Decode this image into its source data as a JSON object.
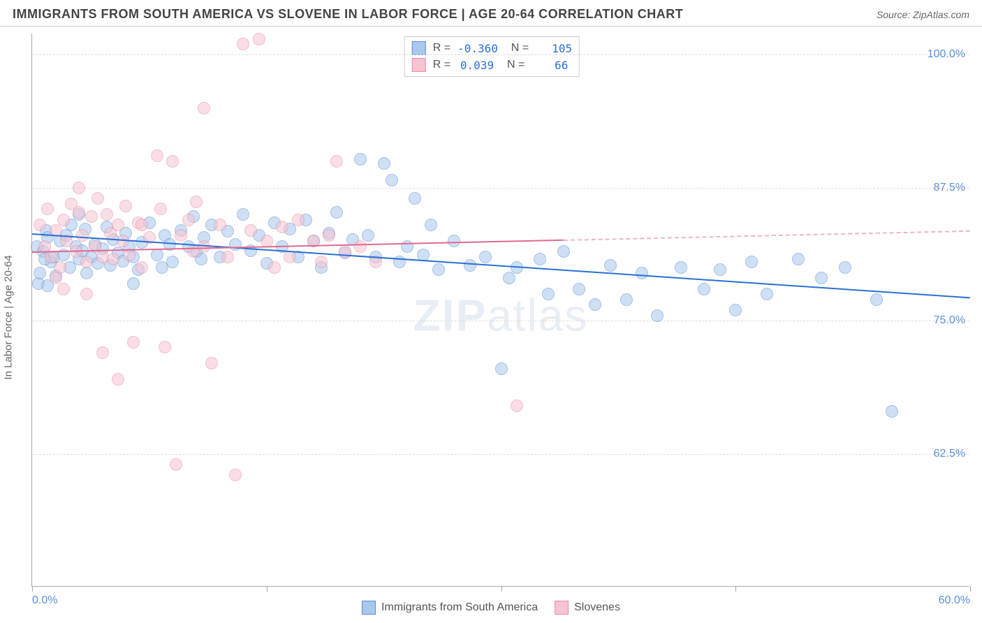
{
  "header": {
    "title": "IMMIGRANTS FROM SOUTH AMERICA VS SLOVENE IN LABOR FORCE | AGE 20-64 CORRELATION CHART",
    "source": "Source: ZipAtlas.com"
  },
  "watermark": {
    "prefix": "ZIP",
    "suffix": "atlas"
  },
  "chart": {
    "type": "scatter",
    "ylabel": "In Labor Force | Age 20-64",
    "background_color": "#ffffff",
    "grid_color": "#dddddd",
    "axis_color": "#aaaaaa",
    "tick_label_color": "#5a8fd6",
    "label_color": "#666666",
    "xlim": [
      0,
      60
    ],
    "ylim": [
      50,
      102
    ],
    "xticks": [
      0,
      15,
      30,
      45,
      60
    ],
    "xtick_labels": [
      "0.0%",
      "",
      "",
      "",
      "60.0%"
    ],
    "gridlines_y": [
      62.5,
      75.0,
      87.5,
      100.0
    ],
    "ytick_labels": [
      "62.5%",
      "75.0%",
      "87.5%",
      "100.0%"
    ],
    "marker_radius": 9,
    "marker_opacity": 0.55,
    "line_width": 2,
    "series": [
      {
        "name": "Immigrants from South America",
        "fill": "#a9c8ee",
        "stroke": "#5b8fd1",
        "line_color": "#2a6fd6",
        "R": "-0.360",
        "N": "105",
        "trend": {
          "x1": 0,
          "y1": 83.2,
          "x2": 60,
          "y2": 77.2,
          "solid_until_x": 60
        },
        "points": [
          [
            0.3,
            82.0
          ],
          [
            0.4,
            78.5
          ],
          [
            0.5,
            79.5
          ],
          [
            0.7,
            81.5
          ],
          [
            0.9,
            83.5
          ],
          [
            1.0,
            82.8
          ],
          [
            1.2,
            80.5
          ],
          [
            1.4,
            81.0
          ],
          [
            1.5,
            79.2
          ],
          [
            1.8,
            82.5
          ],
          [
            2.0,
            81.2
          ],
          [
            2.2,
            83.0
          ],
          [
            2.4,
            80.0
          ],
          [
            2.5,
            84.0
          ],
          [
            2.8,
            82.0
          ],
          [
            3.0,
            80.8
          ],
          [
            3.2,
            81.6
          ],
          [
            3.4,
            83.6
          ],
          [
            3.5,
            79.5
          ],
          [
            3.8,
            81.0
          ],
          [
            4.0,
            82.2
          ],
          [
            4.2,
            80.4
          ],
          [
            4.5,
            81.8
          ],
          [
            4.8,
            83.8
          ],
          [
            5.0,
            80.2
          ],
          [
            5.2,
            82.6
          ],
          [
            5.5,
            81.4
          ],
          [
            5.8,
            80.6
          ],
          [
            6.0,
            83.2
          ],
          [
            6.2,
            82.0
          ],
          [
            6.5,
            81.0
          ],
          [
            6.8,
            79.8
          ],
          [
            7.0,
            82.4
          ],
          [
            7.5,
            84.2
          ],
          [
            8.0,
            81.2
          ],
          [
            8.3,
            80.0
          ],
          [
            8.5,
            83.0
          ],
          [
            8.8,
            82.2
          ],
          [
            9.0,
            80.5
          ],
          [
            9.5,
            83.5
          ],
          [
            10.0,
            82.0
          ],
          [
            10.3,
            84.8
          ],
          [
            10.5,
            81.5
          ],
          [
            10.8,
            80.8
          ],
          [
            11.0,
            82.8
          ],
          [
            11.5,
            84.0
          ],
          [
            12.0,
            81.0
          ],
          [
            12.5,
            83.4
          ],
          [
            13.0,
            82.2
          ],
          [
            13.5,
            85.0
          ],
          [
            14.0,
            81.6
          ],
          [
            14.5,
            83.0
          ],
          [
            15.0,
            80.4
          ],
          [
            15.5,
            84.2
          ],
          [
            16.0,
            82.0
          ],
          [
            16.5,
            83.6
          ],
          [
            17.0,
            81.0
          ],
          [
            17.5,
            84.5
          ],
          [
            18.0,
            82.5
          ],
          [
            18.5,
            80.0
          ],
          [
            19.0,
            83.2
          ],
          [
            19.5,
            85.2
          ],
          [
            20.0,
            81.4
          ],
          [
            20.5,
            82.6
          ],
          [
            21.0,
            90.2
          ],
          [
            21.5,
            83.0
          ],
          [
            22.0,
            81.0
          ],
          [
            22.5,
            89.8
          ],
          [
            23.0,
            88.2
          ],
          [
            23.5,
            80.5
          ],
          [
            24.0,
            82.0
          ],
          [
            24.5,
            86.5
          ],
          [
            25.0,
            81.2
          ],
          [
            25.5,
            84.0
          ],
          [
            26.0,
            79.8
          ],
          [
            27.0,
            82.5
          ],
          [
            28.0,
            80.2
          ],
          [
            29.0,
            81.0
          ],
          [
            30.0,
            70.5
          ],
          [
            30.5,
            79.0
          ],
          [
            31.0,
            80.0
          ],
          [
            32.5,
            80.8
          ],
          [
            33.0,
            77.5
          ],
          [
            34.0,
            81.5
          ],
          [
            35.0,
            78.0
          ],
          [
            36.0,
            76.5
          ],
          [
            37.0,
            80.2
          ],
          [
            38.0,
            77.0
          ],
          [
            39.0,
            79.5
          ],
          [
            40.0,
            75.5
          ],
          [
            41.5,
            80.0
          ],
          [
            43.0,
            78.0
          ],
          [
            44.0,
            79.8
          ],
          [
            45.0,
            76.0
          ],
          [
            46.0,
            80.5
          ],
          [
            47.0,
            77.5
          ],
          [
            49.0,
            80.8
          ],
          [
            50.5,
            79.0
          ],
          [
            52.0,
            80.0
          ],
          [
            54.0,
            77.0
          ],
          [
            55.0,
            66.5
          ],
          [
            1.0,
            78.3
          ],
          [
            0.8,
            80.8
          ],
          [
            3.0,
            85.0
          ],
          [
            6.5,
            78.5
          ]
        ]
      },
      {
        "name": "Slovenes",
        "fill": "#f6c4d0",
        "stroke": "#e88ba4",
        "line_color": "#e06992",
        "R": "0.039",
        "N": "66",
        "trend": {
          "x1": 0,
          "y1": 81.5,
          "x2": 60,
          "y2": 83.5,
          "solid_until_x": 34
        },
        "points": [
          [
            0.5,
            84.0
          ],
          [
            0.8,
            82.0
          ],
          [
            1.0,
            85.5
          ],
          [
            1.2,
            81.0
          ],
          [
            1.5,
            83.5
          ],
          [
            1.8,
            80.0
          ],
          [
            2.0,
            84.5
          ],
          [
            2.2,
            82.5
          ],
          [
            2.5,
            86.0
          ],
          [
            2.8,
            81.5
          ],
          [
            3.0,
            85.2
          ],
          [
            3.2,
            83.0
          ],
          [
            3.5,
            80.5
          ],
          [
            3.8,
            84.8
          ],
          [
            4.0,
            82.0
          ],
          [
            4.2,
            86.5
          ],
          [
            4.5,
            81.0
          ],
          [
            4.8,
            85.0
          ],
          [
            5.0,
            83.2
          ],
          [
            5.2,
            80.8
          ],
          [
            5.5,
            84.0
          ],
          [
            5.8,
            82.5
          ],
          [
            6.0,
            85.8
          ],
          [
            6.2,
            81.2
          ],
          [
            6.5,
            73.0
          ],
          [
            6.8,
            84.2
          ],
          [
            7.0,
            80.0
          ],
          [
            7.5,
            82.8
          ],
          [
            8.0,
            90.5
          ],
          [
            8.2,
            85.5
          ],
          [
            8.5,
            72.5
          ],
          [
            9.0,
            90.0
          ],
          [
            9.2,
            61.5
          ],
          [
            9.5,
            83.0
          ],
          [
            10.0,
            84.5
          ],
          [
            10.3,
            81.5
          ],
          [
            10.5,
            86.2
          ],
          [
            11.0,
            82.0
          ],
          [
            11.5,
            71.0
          ],
          [
            12.0,
            84.0
          ],
          [
            12.5,
            81.0
          ],
          [
            13.0,
            60.5
          ],
          [
            13.5,
            101.0
          ],
          [
            14.0,
            83.5
          ],
          [
            14.5,
            101.5
          ],
          [
            15.0,
            82.5
          ],
          [
            15.5,
            80.0
          ],
          [
            16.0,
            83.8
          ],
          [
            16.5,
            81.0
          ],
          [
            17.0,
            84.5
          ],
          [
            18.0,
            82.5
          ],
          [
            18.5,
            80.5
          ],
          [
            19.0,
            83.0
          ],
          [
            19.5,
            90.0
          ],
          [
            20.0,
            81.5
          ],
          [
            21.0,
            82.0
          ],
          [
            22.0,
            80.5
          ],
          [
            1.5,
            79.0
          ],
          [
            2.0,
            78.0
          ],
          [
            5.5,
            69.5
          ],
          [
            3.5,
            77.5
          ],
          [
            4.5,
            72.0
          ],
          [
            11.0,
            95.0
          ],
          [
            31.0,
            67.0
          ],
          [
            7.0,
            84.0
          ],
          [
            3.0,
            87.5
          ]
        ]
      }
    ],
    "legend": {
      "items": [
        {
          "label": "Immigrants from South America",
          "fill": "#a9c8ee",
          "stroke": "#5b8fd1"
        },
        {
          "label": "Slovenes",
          "fill": "#f6c4d0",
          "stroke": "#e88ba4"
        }
      ]
    }
  }
}
